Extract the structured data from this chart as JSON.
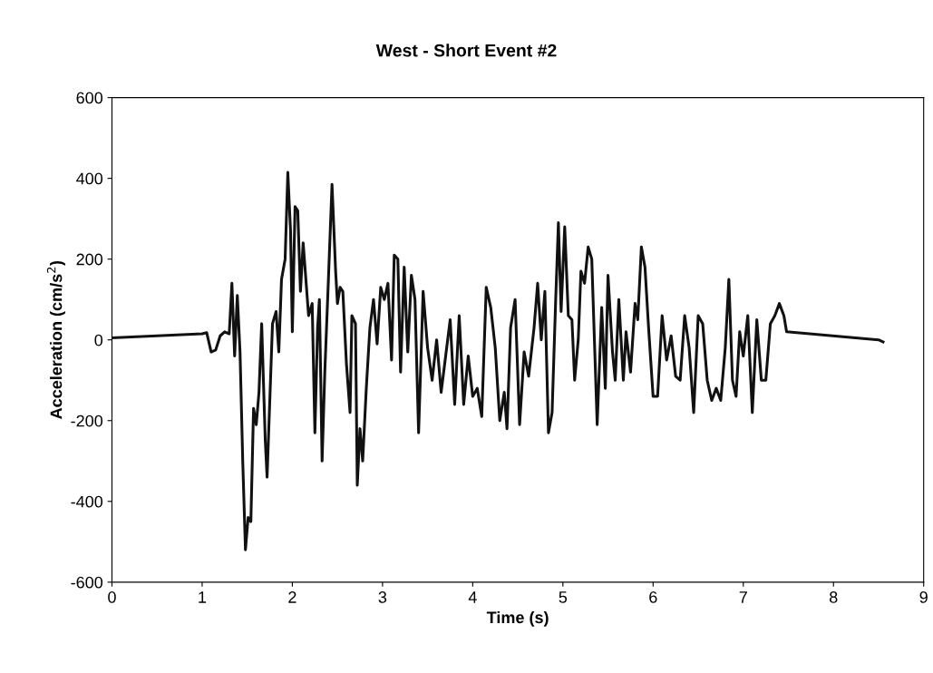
{
  "chart_data": {
    "type": "line",
    "title": "West - Short Event #2",
    "xlabel": "Time (s)",
    "ylabel": "Acceleration (cm/s$^{2}$)",
    "xlim": [
      0,
      9
    ],
    "xticks": [
      0,
      1,
      2,
      3,
      4,
      5,
      6,
      7,
      8,
      9
    ],
    "ylim": [
      -600,
      600
    ],
    "yticks": [
      -600,
      -400,
      -200,
      0,
      200,
      400,
      600
    ],
    "grid": false,
    "marker": "none",
    "line_style": "solid",
    "series": [
      {
        "color": "#111111",
        "x": [
          0,
          1.0,
          1.05,
          1.1,
          1.15,
          1.2,
          1.25,
          1.3,
          1.33,
          1.36,
          1.39,
          1.42,
          1.45,
          1.48,
          1.51,
          1.54,
          1.57,
          1.6,
          1.63,
          1.66,
          1.7,
          1.72,
          1.75,
          1.78,
          1.82,
          1.85,
          1.88,
          1.92,
          1.95,
          1.98,
          2.0,
          2.03,
          2.06,
          2.09,
          2.12,
          2.15,
          2.18,
          2.22,
          2.25,
          2.28,
          2.3,
          2.33,
          2.36,
          2.4,
          2.44,
          2.48,
          2.5,
          2.53,
          2.56,
          2.6,
          2.64,
          2.66,
          2.7,
          2.72,
          2.75,
          2.78,
          2.82,
          2.86,
          2.9,
          2.94,
          2.98,
          3.02,
          3.06,
          3.1,
          3.13,
          3.17,
          3.2,
          3.24,
          3.28,
          3.32,
          3.36,
          3.4,
          3.45,
          3.5,
          3.55,
          3.6,
          3.65,
          3.7,
          3.75,
          3.8,
          3.85,
          3.9,
          3.95,
          4.0,
          4.05,
          4.1,
          4.15,
          4.2,
          4.25,
          4.3,
          4.35,
          4.38,
          4.42,
          4.47,
          4.52,
          4.57,
          4.62,
          4.68,
          4.72,
          4.76,
          4.8,
          4.84,
          4.88,
          4.92,
          4.95,
          4.98,
          5.02,
          5.06,
          5.1,
          5.13,
          5.17,
          5.2,
          5.24,
          5.28,
          5.32,
          5.38,
          5.43,
          5.47,
          5.5,
          5.55,
          5.58,
          5.62,
          5.67,
          5.7,
          5.75,
          5.8,
          5.83,
          5.87,
          5.91,
          5.95,
          6.0,
          6.05,
          6.1,
          6.15,
          6.2,
          6.25,
          6.3,
          6.35,
          6.4,
          6.45,
          6.5,
          6.55,
          6.6,
          6.65,
          6.7,
          6.75,
          6.8,
          6.84,
          6.88,
          6.92,
          6.96,
          7.0,
          7.05,
          7.1,
          7.15,
          7.2,
          7.25,
          7.3,
          7.35,
          7.4,
          7.45,
          7.48,
          8.5,
          8.55
        ],
        "values": [
          5,
          15,
          18,
          -30,
          -25,
          10,
          20,
          15,
          140,
          -40,
          110,
          -30,
          -300,
          -520,
          -440,
          -450,
          -170,
          -210,
          -130,
          40,
          -250,
          -340,
          -150,
          40,
          70,
          -30,
          150,
          200,
          415,
          270,
          20,
          330,
          320,
          120,
          240,
          150,
          60,
          90,
          -230,
          30,
          100,
          -300,
          -80,
          150,
          385,
          170,
          90,
          130,
          120,
          -60,
          -180,
          60,
          40,
          -360,
          -220,
          -300,
          -120,
          30,
          100,
          -10,
          130,
          100,
          140,
          -50,
          210,
          200,
          -80,
          180,
          -30,
          160,
          100,
          -230,
          120,
          -20,
          -100,
          0,
          -130,
          -40,
          50,
          -160,
          60,
          -160,
          -40,
          -140,
          -120,
          -190,
          130,
          80,
          -20,
          -200,
          -130,
          -220,
          30,
          100,
          -210,
          -30,
          -90,
          30,
          140,
          0,
          120,
          -230,
          -180,
          100,
          290,
          70,
          280,
          60,
          50,
          -100,
          0,
          170,
          140,
          230,
          200,
          -210,
          80,
          -120,
          160,
          -30,
          -100,
          100,
          -100,
          20,
          -80,
          90,
          50,
          230,
          180,
          30,
          -140,
          -140,
          60,
          -50,
          10,
          -90,
          -100,
          60,
          -20,
          -180,
          60,
          40,
          -100,
          -150,
          -120,
          -150,
          -20,
          150,
          -100,
          -140,
          20,
          -40,
          60,
          -180,
          50,
          -100,
          -100,
          40,
          60,
          90,
          60,
          20,
          0,
          -5
        ]
      }
    ]
  }
}
